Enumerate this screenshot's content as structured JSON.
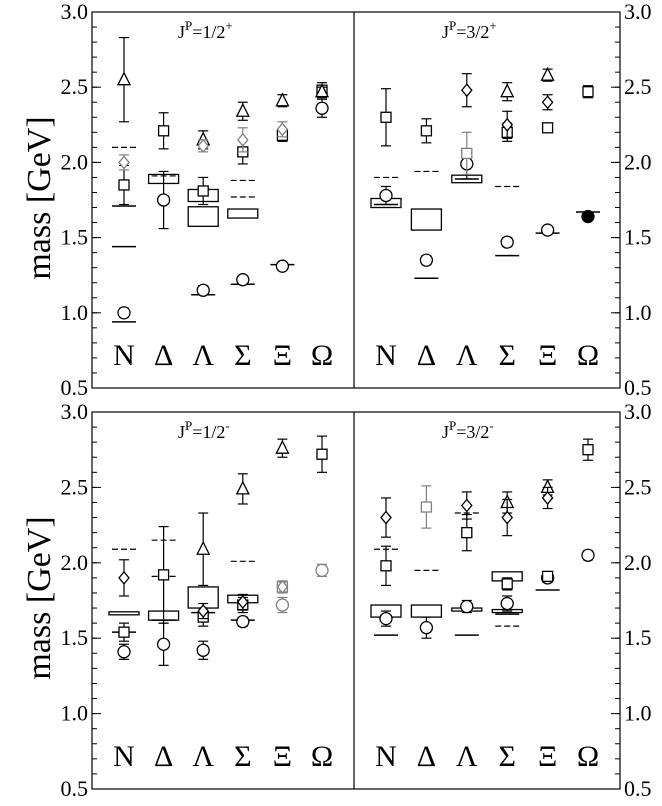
{
  "chart_data": {
    "type": "scatter",
    "ylabel": "mass [GeV]",
    "ylim": [
      0.5,
      3.0
    ],
    "yticks": [
      "0.5",
      "1.0",
      "1.5",
      "2.0",
      "2.5",
      "3.0"
    ],
    "categories": [
      "N",
      "Δ",
      "Λ",
      "Σ",
      "Ξ",
      "Ω"
    ],
    "panels": [
      {
        "label_main": "J",
        "label_sup": "P",
        "label_rest": "=1/2",
        "label_parity": "+",
        "series": [
          {
            "style": "line",
            "color": "#000000",
            "points": [
              {
                "cat": 0,
                "y": 0.94
              },
              {
                "cat": 0,
                "y": 1.44
              },
              {
                "cat": 0,
                "y": 1.71
              },
              {
                "cat": 2,
                "y": 1.12
              },
              {
                "cat": 3,
                "y": 1.19
              },
              {
                "cat": 4,
                "y": 1.32
              }
            ]
          },
          {
            "style": "dashed",
            "color": "#000000",
            "points": [
              {
                "cat": 0,
                "y": 2.1
              },
              {
                "cat": 1,
                "y": 1.91
              },
              {
                "cat": 3,
                "y": 1.88
              },
              {
                "cat": 3,
                "y": 1.77
              }
            ]
          },
          {
            "style": "box",
            "color": "#000000",
            "points": [
              {
                "cat": 1,
                "y": 1.89,
                "h": 0.06
              },
              {
                "cat": 2,
                "y": 1.64,
                "h": 0.13
              },
              {
                "cat": 2,
                "y": 1.78,
                "h": 0.08
              },
              {
                "cat": 3,
                "y": 1.66,
                "h": 0.06
              }
            ]
          },
          {
            "style": "circle",
            "color": "#000000",
            "points": [
              {
                "cat": 0,
                "y": 1.0,
                "err": 0.03
              },
              {
                "cat": 1,
                "y": 1.75,
                "err": 0.19
              },
              {
                "cat": 2,
                "y": 1.15,
                "err": 0.03
              },
              {
                "cat": 3,
                "y": 1.22,
                "err": 0.02
              },
              {
                "cat": 4,
                "y": 1.31,
                "err": 0.01
              },
              {
                "cat": 5,
                "y": 2.36,
                "err": 0.06
              }
            ]
          },
          {
            "style": "square",
            "color": "#000000",
            "points": [
              {
                "cat": 0,
                "y": 1.85,
                "err": 0.13
              },
              {
                "cat": 1,
                "y": 2.21,
                "err": 0.12
              },
              {
                "cat": 2,
                "y": 1.81,
                "err": 0.09
              },
              {
                "cat": 3,
                "y": 2.07,
                "err": 0.08
              },
              {
                "cat": 4,
                "y": 2.18,
                "err": 0.04
              },
              {
                "cat": 5,
                "y": 2.48,
                "err": 0.05
              }
            ]
          },
          {
            "style": "triangle",
            "color": "#000000",
            "points": [
              {
                "cat": 0,
                "y": 2.55,
                "err": 0.28
              },
              {
                "cat": 2,
                "y": 2.15,
                "err": 0.06
              },
              {
                "cat": 3,
                "y": 2.34,
                "err": 0.06
              },
              {
                "cat": 4,
                "y": 2.41,
                "err": 0.04
              },
              {
                "cat": 5,
                "y": 2.47,
                "err": 0.03
              }
            ]
          },
          {
            "style": "diamond",
            "color": "#808080",
            "points": [
              {
                "cat": 0,
                "y": 2.0,
                "err": 0.05
              },
              {
                "cat": 2,
                "y": 2.11,
                "err": 0.04
              },
              {
                "cat": 3,
                "y": 2.15,
                "err": 0.08
              },
              {
                "cat": 4,
                "y": 2.22,
                "err": 0.05
              }
            ]
          }
        ]
      },
      {
        "label_main": "J",
        "label_sup": "P",
        "label_rest": "=3/2",
        "label_parity": "+",
        "series": [
          {
            "style": "line",
            "color": "#000000",
            "points": [
              {
                "cat": 0,
                "y": 1.72
              },
              {
                "cat": 1,
                "y": 1.23
              },
              {
                "cat": 2,
                "y": 1.89
              },
              {
                "cat": 3,
                "y": 1.38
              },
              {
                "cat": 4,
                "y": 1.53
              },
              {
                "cat": 5,
                "y": 1.67
              }
            ]
          },
          {
            "style": "dashed",
            "color": "#000000",
            "points": [
              {
                "cat": 0,
                "y": 1.9
              },
              {
                "cat": 1,
                "y": 1.94
              },
              {
                "cat": 3,
                "y": 1.84
              }
            ]
          },
          {
            "style": "box",
            "color": "#000000",
            "points": [
              {
                "cat": 0,
                "y": 1.73,
                "h": 0.06
              },
              {
                "cat": 1,
                "y": 1.62,
                "h": 0.14
              },
              {
                "cat": 2,
                "y": 1.89,
                "h": 0.05
              }
            ]
          },
          {
            "style": "circle",
            "color": "#000000",
            "points": [
              {
                "cat": 0,
                "y": 1.78,
                "err": 0.06
              },
              {
                "cat": 1,
                "y": 1.35,
                "err": 0.03
              },
              {
                "cat": 2,
                "y": 1.99,
                "err": 0.1
              },
              {
                "cat": 3,
                "y": 1.47,
                "err": 0.03
              },
              {
                "cat": 4,
                "y": 1.55,
                "err": 0.02
              }
            ]
          },
          {
            "style": "filled-circle",
            "color": "#000000",
            "points": [
              {
                "cat": 5,
                "y": 1.64,
                "err": 0
              }
            ]
          },
          {
            "style": "square",
            "color": "#000000",
            "points": [
              {
                "cat": 0,
                "y": 2.3,
                "err": 0.19
              },
              {
                "cat": 1,
                "y": 2.21,
                "err": 0.08
              },
              {
                "cat": 3,
                "y": 2.2,
                "err": 0.06
              },
              {
                "cat": 4,
                "y": 2.23,
                "err": 0.03
              },
              {
                "cat": 5,
                "y": 2.47,
                "err": 0.04
              }
            ]
          },
          {
            "style": "square",
            "color": "#808080",
            "points": [
              {
                "cat": 2,
                "y": 2.06,
                "err": 0.14
              }
            ]
          },
          {
            "style": "triangle",
            "color": "#000000",
            "points": [
              {
                "cat": 3,
                "y": 2.47,
                "err": 0.06
              },
              {
                "cat": 4,
                "y": 2.58,
                "err": 0.04
              }
            ]
          },
          {
            "style": "diamond",
            "color": "#000000",
            "points": [
              {
                "cat": 2,
                "y": 2.48,
                "err": 0.11
              },
              {
                "cat": 3,
                "y": 2.25,
                "err": 0.09
              },
              {
                "cat": 4,
                "y": 2.4,
                "err": 0.05
              }
            ]
          }
        ]
      },
      {
        "label_main": "J",
        "label_sup": "P",
        "label_rest": "=1/2",
        "label_parity": "-",
        "series": [
          {
            "style": "line",
            "color": "#000000",
            "points": [
              {
                "cat": 0,
                "y": 1.54
              },
              {
                "cat": 1,
                "y": 1.62
              },
              {
                "cat": 2,
                "y": 1.67
              },
              {
                "cat": 3,
                "y": 1.62
              }
            ]
          },
          {
            "style": "dashed",
            "color": "#000000",
            "points": [
              {
                "cat": 0,
                "y": 2.09
              },
              {
                "cat": 1,
                "y": 2.15
              },
              {
                "cat": 1,
                "y": 1.91
              },
              {
                "cat": 3,
                "y": 2.01
              }
            ]
          },
          {
            "style": "box",
            "color": "#000000",
            "points": [
              {
                "cat": 0,
                "y": 1.665,
                "h": 0.02
              },
              {
                "cat": 1,
                "y": 1.65,
                "h": 0.06
              },
              {
                "cat": 2,
                "y": 1.77,
                "h": 0.14
              },
              {
                "cat": 3,
                "y": 1.76,
                "h": 0.05
              }
            ]
          },
          {
            "style": "circle",
            "color": "#000000",
            "points": [
              {
                "cat": 0,
                "y": 1.41,
                "err": 0.05
              },
              {
                "cat": 1,
                "y": 1.46,
                "err": 0.14
              },
              {
                "cat": 2,
                "y": 1.42,
                "err": 0.06
              },
              {
                "cat": 3,
                "y": 1.61,
                "err": 0.03
              }
            ]
          },
          {
            "style": "circle",
            "color": "#808080",
            "points": [
              {
                "cat": 4,
                "y": 1.72,
                "err": 0.05
              },
              {
                "cat": 5,
                "y": 1.95,
                "err": 0.04
              }
            ]
          },
          {
            "style": "square",
            "color": "#000000",
            "points": [
              {
                "cat": 0,
                "y": 1.54,
                "err": 0.06
              },
              {
                "cat": 1,
                "y": 1.92,
                "err": 0.32
              },
              {
                "cat": 2,
                "y": 1.64,
                "err": 0.06
              },
              {
                "cat": 3,
                "y": 1.72,
                "err": 0.05
              },
              {
                "cat": 5,
                "y": 2.72,
                "err": 0.12
              }
            ]
          },
          {
            "style": "square",
            "color": "#808080",
            "points": [
              {
                "cat": 4,
                "y": 1.84,
                "err": 0.02
              }
            ]
          },
          {
            "style": "triangle",
            "color": "#000000",
            "points": [
              {
                "cat": 2,
                "y": 2.09,
                "err": 0.24
              },
              {
                "cat": 3,
                "y": 2.49,
                "err": 0.1
              },
              {
                "cat": 4,
                "y": 2.76,
                "err": 0.06
              }
            ]
          },
          {
            "style": "diamond",
            "color": "#000000",
            "points": [
              {
                "cat": 0,
                "y": 1.9,
                "err": 0.12
              },
              {
                "cat": 2,
                "y": 1.68,
                "err": 0.05
              },
              {
                "cat": 3,
                "y": 1.74,
                "err": 0.05
              }
            ]
          },
          {
            "style": "diamond",
            "color": "#808080",
            "points": [
              {
                "cat": 4,
                "y": 1.84,
                "err": 0.04
              }
            ]
          }
        ]
      },
      {
        "label_main": "J",
        "label_sup": "P",
        "label_rest": "=3/2",
        "label_parity": "-",
        "series": [
          {
            "style": "line",
            "color": "#000000",
            "points": [
              {
                "cat": 0,
                "y": 1.52
              },
              {
                "cat": 2,
                "y": 1.52
              },
              {
                "cat": 3,
                "y": 1.66
              },
              {
                "cat": 4,
                "y": 1.82
              }
            ]
          },
          {
            "style": "dashed",
            "color": "#000000",
            "points": [
              {
                "cat": 0,
                "y": 2.09
              },
              {
                "cat": 1,
                "y": 1.95
              },
              {
                "cat": 2,
                "y": 2.33
              },
              {
                "cat": 3,
                "y": 1.58
              }
            ]
          },
          {
            "style": "box",
            "color": "#000000",
            "points": [
              {
                "cat": 0,
                "y": 1.68,
                "h": 0.08
              },
              {
                "cat": 1,
                "y": 1.68,
                "h": 0.08
              },
              {
                "cat": 2,
                "y": 1.69,
                "h": 0.02
              },
              {
                "cat": 3,
                "y": 1.91,
                "h": 0.06
              },
              {
                "cat": 3,
                "y": 1.68,
                "h": 0.02
              }
            ]
          },
          {
            "style": "circle",
            "color": "#000000",
            "points": [
              {
                "cat": 0,
                "y": 1.63,
                "err": 0.05
              },
              {
                "cat": 1,
                "y": 1.57,
                "err": 0.07
              },
              {
                "cat": 2,
                "y": 1.71,
                "err": 0.04
              },
              {
                "cat": 3,
                "y": 1.73,
                "err": 0.05
              },
              {
                "cat": 4,
                "y": 1.9,
                "err": 0.03
              },
              {
                "cat": 5,
                "y": 2.05,
                "err": 0.03
              }
            ]
          },
          {
            "style": "square",
            "color": "#000000",
            "points": [
              {
                "cat": 0,
                "y": 1.98,
                "err": 0.13
              },
              {
                "cat": 2,
                "y": 2.2,
                "err": 0.12
              },
              {
                "cat": 3,
                "y": 1.86,
                "err": 0.04
              },
              {
                "cat": 4,
                "y": 1.91,
                "err": 0.03
              },
              {
                "cat": 5,
                "y": 2.75,
                "err": 0.07
              }
            ]
          },
          {
            "style": "square",
            "color": "#808080",
            "points": [
              {
                "cat": 1,
                "y": 2.37,
                "err": 0.14
              }
            ]
          },
          {
            "style": "triangle",
            "color": "#000000",
            "points": [
              {
                "cat": 3,
                "y": 2.4,
                "err": 0.07
              },
              {
                "cat": 4,
                "y": 2.5,
                "err": 0.05
              }
            ]
          },
          {
            "style": "diamond",
            "color": "#000000",
            "points": [
              {
                "cat": 0,
                "y": 2.3,
                "err": 0.13
              },
              {
                "cat": 2,
                "y": 2.38,
                "err": 0.09
              },
              {
                "cat": 3,
                "y": 2.3,
                "err": 0.12
              },
              {
                "cat": 4,
                "y": 2.43,
                "err": 0.07
              }
            ]
          }
        ]
      }
    ]
  }
}
